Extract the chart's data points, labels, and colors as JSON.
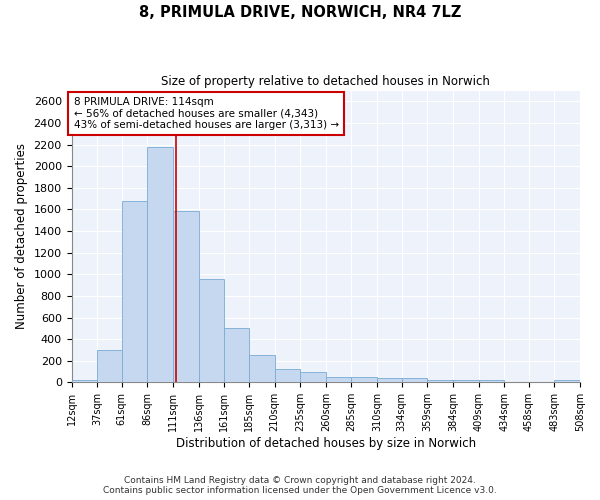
{
  "title_line1": "8, PRIMULA DRIVE, NORWICH, NR4 7LZ",
  "title_line2": "Size of property relative to detached houses in Norwich",
  "xlabel": "Distribution of detached houses by size in Norwich",
  "ylabel": "Number of detached properties",
  "bar_color": "#c5d8ef",
  "bar_edge_color": "#7aabd4",
  "background_color": "#eef2fb",
  "grid_color": "#ffffff",
  "property_line_color": "#cc0000",
  "property_size": 114,
  "annotation_line1": "8 PRIMULA DRIVE: 114sqm",
  "annotation_line2": "← 56% of detached houses are smaller (4,343)",
  "annotation_line3": "43% of semi-detached houses are larger (3,313) →",
  "bin_edges": [
    12,
    37,
    61,
    86,
    111,
    136,
    161,
    185,
    210,
    235,
    260,
    285,
    310,
    334,
    359,
    384,
    409,
    434,
    458,
    483,
    508
  ],
  "bar_heights": [
    20,
    300,
    1680,
    2175,
    1590,
    960,
    500,
    250,
    120,
    100,
    50,
    50,
    40,
    40,
    20,
    20,
    20,
    5,
    5,
    20
  ],
  "ylim": [
    0,
    2700
  ],
  "yticks": [
    0,
    200,
    400,
    600,
    800,
    1000,
    1200,
    1400,
    1600,
    1800,
    2000,
    2200,
    2400,
    2600
  ],
  "footnote1": "Contains HM Land Registry data © Crown copyright and database right 2024.",
  "footnote2": "Contains public sector information licensed under the Open Government Licence v3.0."
}
